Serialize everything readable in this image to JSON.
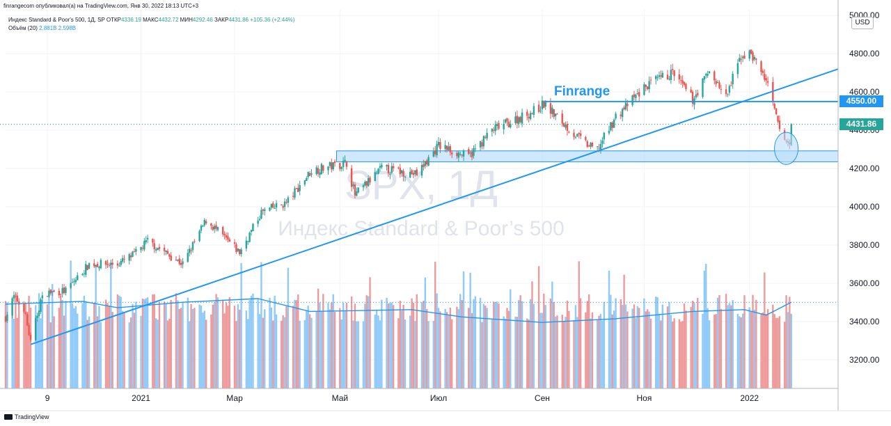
{
  "header": {
    "topline": "finrangecom опубликовал(а) на TradingView.com, Янв 30, 2022 18:13 UTC+3",
    "symbol": "Индекс Standard & Poor's 500, 1Д, SP",
    "open_label": "ОТКР",
    "open": "4336.19",
    "high_label": "МАКС",
    "high": "4432.72",
    "low_label": "МИН",
    "low": "4292.46",
    "close_label": "ЗАКР",
    "close": "4431.86",
    "change": "+105.36 (+2.44%)",
    "volume_label": "Объём (20)",
    "volume1": "2.881B",
    "volume2": "2.598B"
  },
  "watermark": {
    "ticker": "SPX, 1Д",
    "name": "Индекс Standard & Poor’s 500"
  },
  "currency": "USD",
  "annotation": "Finrange",
  "level_tag": "4550.00",
  "last_price_tag": "4431.86",
  "footer": "TradingView",
  "colors": {
    "up": "#26a69a",
    "down": "#ef5350",
    "line": "#2196f3",
    "vol_up": "#90caf9",
    "vol_down": "#ef9a9a",
    "zone": "#bbdefb"
  },
  "chart_data": {
    "type": "candlestick",
    "yticks": [
      3200,
      3400,
      3600,
      3800,
      4000,
      4200,
      4400,
      4600,
      4800,
      5000
    ],
    "ytick_labels": [
      "3200.00",
      "3400.00",
      "3600.00",
      "3800.00",
      "4000.00",
      "4200.00",
      "4400.00",
      "4600.00",
      "4800.00",
      "5000.00"
    ],
    "xtick_labels": [
      "9",
      "2021",
      "Мар",
      "Май",
      "Июл",
      "Сен",
      "Ноя",
      "2022"
    ],
    "xtick_dates": [
      "2020-11-09",
      "2021-01-04",
      "2021-03-01",
      "2021-05-03",
      "2021-07-01",
      "2021-09-01",
      "2021-11-01",
      "2022-01-03"
    ],
    "date_range": [
      "2020-10-15",
      "2022-01-28"
    ],
    "ylim": [
      3050,
      5030
    ],
    "price_path": [
      [
        "2020-10-15",
        3420
      ],
      [
        "2020-10-20",
        3530
      ],
      [
        "2020-10-26",
        3470
      ],
      [
        "2020-10-30",
        3290
      ],
      [
        "2020-11-05",
        3510
      ],
      [
        "2020-11-09",
        3550
      ],
      [
        "2020-11-20",
        3560
      ],
      [
        "2020-12-04",
        3700
      ],
      [
        "2020-12-21",
        3700
      ],
      [
        "2020-12-31",
        3750
      ],
      [
        "2021-01-08",
        3820
      ],
      [
        "2021-01-29",
        3700
      ],
      [
        "2021-02-12",
        3930
      ],
      [
        "2021-03-04",
        3760
      ],
      [
        "2021-03-17",
        3970
      ],
      [
        "2021-04-01",
        4020
      ],
      [
        "2021-04-16",
        4190
      ],
      [
        "2021-05-07",
        4230
      ],
      [
        "2021-05-12",
        4060
      ],
      [
        "2021-05-28",
        4200
      ],
      [
        "2021-06-18",
        4170
      ],
      [
        "2021-07-01",
        4320
      ],
      [
        "2021-07-19",
        4260
      ],
      [
        "2021-08-02",
        4400
      ],
      [
        "2021-08-27",
        4500
      ],
      [
        "2021-09-02",
        4537
      ],
      [
        "2021-09-20",
        4380
      ],
      [
        "2021-09-30",
        4310
      ],
      [
        "2021-10-04",
        4300
      ],
      [
        "2021-10-15",
        4470
      ],
      [
        "2021-11-02",
        4630
      ],
      [
        "2021-11-18",
        4700
      ],
      [
        "2021-11-30",
        4560
      ],
      [
        "2021-12-10",
        4710
      ],
      [
        "2021-12-20",
        4570
      ],
      [
        "2021-12-29",
        4790
      ],
      [
        "2022-01-04",
        4800
      ],
      [
        "2022-01-13",
        4660
      ],
      [
        "2022-01-21",
        4400
      ],
      [
        "2022-01-24",
        4350
      ],
      [
        "2022-01-27",
        4330
      ],
      [
        "2022-01-28",
        4431.86
      ]
    ],
    "volume_axis_max": 6000000000,
    "volume_ma20": [
      [
        "2020-10-15",
        4600000000
      ],
      [
        "2020-11-30",
        4750000000
      ],
      [
        "2020-12-21",
        4400000000
      ],
      [
        "2021-01-29",
        4700000000
      ],
      [
        "2021-03-15",
        4900000000
      ],
      [
        "2021-04-15",
        4200000000
      ],
      [
        "2021-06-15",
        4300000000
      ],
      [
        "2021-07-15",
        3900000000
      ],
      [
        "2021-09-01",
        3600000000
      ],
      [
        "2021-10-15",
        3800000000
      ],
      [
        "2021-11-30",
        4200000000
      ],
      [
        "2021-12-31",
        4300000000
      ],
      [
        "2022-01-13",
        4000000000
      ],
      [
        "2022-01-28",
        4700000000
      ]
    ],
    "trendline": {
      "start": [
        "2020-10-30",
        3280
      ],
      "end": [
        "2022-02-25",
        4720
      ]
    },
    "horizontal_level": {
      "value": 4550,
      "from": "2021-09-02"
    },
    "support_zone": {
      "low": 4235,
      "high": 4292,
      "from": "2021-05-01"
    },
    "highlight_ellipse": {
      "date": "2022-01-25",
      "center": 4305,
      "rx_days": 4,
      "ry_price": 120
    },
    "last_price": 4431.86
  }
}
